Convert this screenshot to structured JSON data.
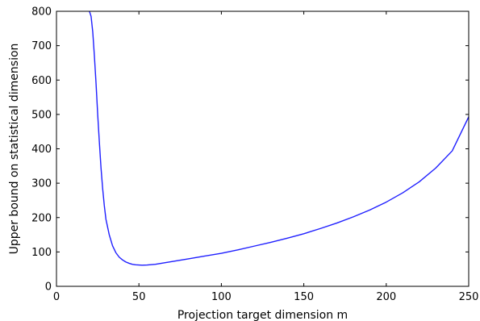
{
  "chart_data": {
    "type": "line",
    "title": "",
    "xlabel": "Projection target dimension m",
    "ylabel": "Upper bound on statistical dimension",
    "xlim": [
      0,
      250
    ],
    "ylim": [
      0,
      800
    ],
    "xticks": [
      0,
      50,
      100,
      150,
      200,
      250
    ],
    "yticks": [
      0,
      100,
      200,
      300,
      400,
      500,
      600,
      700,
      800
    ],
    "grid": false,
    "series": [
      {
        "color": "#1f1fff",
        "x": [
          20,
          21,
          22,
          23,
          24,
          25,
          26,
          27,
          28,
          29,
          30,
          32,
          34,
          36,
          38,
          40,
          42,
          44,
          46,
          48,
          50,
          52,
          55,
          60,
          70,
          80,
          90,
          100,
          110,
          120,
          130,
          140,
          150,
          160,
          170,
          180,
          190,
          200,
          210,
          220,
          230,
          240,
          250
        ],
        "y": [
          800,
          785,
          740,
          670,
          590,
          500,
          420,
          345,
          285,
          235,
          195,
          150,
          118,
          98,
          85,
          77,
          71,
          67,
          64,
          62.5,
          62,
          61.5,
          62,
          64,
          72,
          80,
          88,
          96,
          106,
          117,
          128,
          140,
          153,
          168,
          184,
          202,
          222,
          245,
          272,
          304,
          344,
          394,
          493
        ]
      }
    ]
  }
}
